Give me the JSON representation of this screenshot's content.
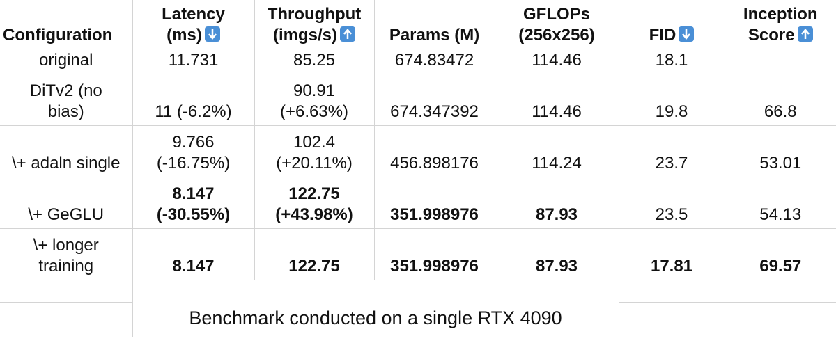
{
  "table": {
    "header": [
      "Configuration",
      "Latency\n(ms)",
      "Throughput\n(imgs/s)",
      "Params (M)",
      "GFLOPs\n(256x256)",
      "FID",
      "Inception\nScore"
    ],
    "rows": [
      [
        "original",
        "11.731",
        "85.25",
        "674.83472",
        "114.46",
        "18.1",
        ""
      ],
      [
        "DiTv2 (no\nbias)",
        "11 (-6.2%)",
        "90.91\n(+6.63%)",
        "674.347392",
        "114.46",
        "19.8",
        "66.8"
      ],
      [
        "\\+ adaln single",
        "9.766\n(-16.75%)",
        "102.4\n(+20.11%)",
        "456.898176",
        "114.24",
        "23.7",
        "53.01"
      ],
      [
        "\\+ GeGLU",
        "8.147\n(-30.55%)",
        "122.75\n(+43.98%)",
        "351.998976",
        "87.93",
        "23.5",
        "54.13"
      ],
      [
        "\\+ longer\ntraining",
        "8.147",
        "122.75",
        "351.998976",
        "87.93",
        "17.81",
        "69.57"
      ]
    ],
    "note": "Benchmark conducted on a single RTX 4090"
  }
}
